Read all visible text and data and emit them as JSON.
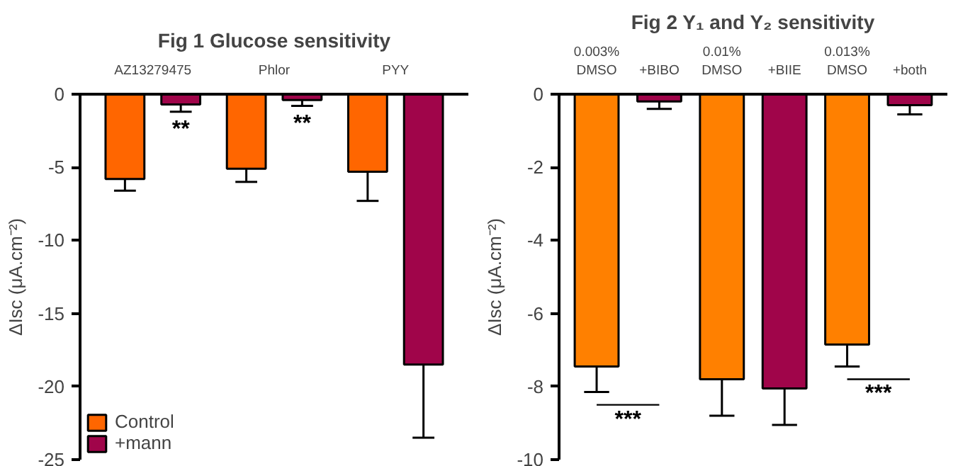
{
  "chart_data": [
    {
      "type": "bar",
      "title": "Fig 1 Glucose sensitivity",
      "ylabel": "ΔIsc (μA.cm⁻²)",
      "categories": [
        "AZ13279475",
        "Phlor",
        "PYY"
      ],
      "series": [
        {
          "name": "Control",
          "color": "#ff6600",
          "values": [
            -5.8,
            -5.1,
            -5.3
          ],
          "errors": [
            0.8,
            0.9,
            2.0
          ]
        },
        {
          "name": "+mann",
          "color": "#a0054a",
          "values": [
            -0.7,
            -0.4,
            -18.5
          ],
          "errors": [
            0.5,
            0.4,
            5.0
          ]
        }
      ],
      "ylim": [
        -25,
        0
      ],
      "yticks": [
        0,
        -5,
        -10,
        -15,
        -20,
        -25
      ],
      "grid": false,
      "legend": "bottom left",
      "annotations": [
        "**",
        "**"
      ]
    },
    {
      "type": "bar",
      "title": "Fig 2 Y₁ and Y₂ sensitivity",
      "ylabel": "ΔIsc (μA.cm⁻²)",
      "categories": [
        "0.003%\nDMSO",
        "+BIBO",
        "0.01%\nDMSO",
        "+BIIE",
        "0.013%\nDMSO",
        "+both"
      ],
      "values": [
        -7.45,
        -0.2,
        -7.8,
        -8.05,
        -6.85,
        -0.3
      ],
      "errors": [
        0.7,
        0.2,
        1.0,
        1.0,
        0.6,
        0.25
      ],
      "colors": [
        "#ff8000",
        "#a0054a",
        "#ff8000",
        "#a0054a",
        "#ff8000",
        "#a0054a"
      ],
      "ylim": [
        -10,
        0
      ],
      "yticks": [
        0,
        -2,
        -4,
        -6,
        -8,
        -10
      ],
      "grid": false,
      "annotations": [
        "***",
        "***"
      ]
    }
  ]
}
